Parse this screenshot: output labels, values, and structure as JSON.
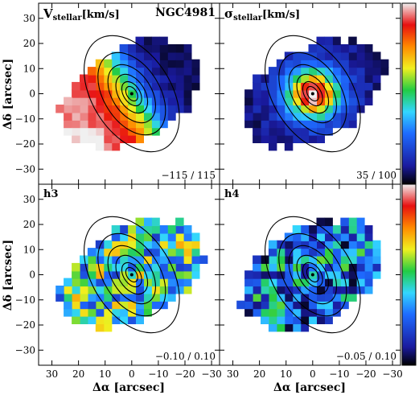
{
  "figure": {
    "galaxy_name": "NGC4981"
  },
  "chart_data": [
    {
      "type": "heatmap",
      "panel": "top-left",
      "label_main": "V",
      "label_sub": "stellar",
      "label_unit": "[km/s]",
      "range_text": "−115 / 115",
      "vmin": -115,
      "vmax": 115,
      "ylabel": "Δδ [arcsec]",
      "xlabel": "",
      "xlim": [
        35,
        -33
      ],
      "ylim": [
        -36,
        36
      ],
      "xticks": [
        30,
        20,
        10,
        0,
        -10,
        -20,
        -30
      ],
      "yticks": [
        -30,
        -20,
        -10,
        0,
        10,
        20,
        30
      ],
      "ytick_labels": [
        "−30",
        "−20",
        "−10",
        "0",
        "10",
        "20",
        "30"
      ]
    },
    {
      "type": "heatmap",
      "panel": "top-right",
      "label_main": "σ",
      "label_sub": "stellar",
      "label_unit": "[km/s]",
      "range_text": "35 / 100",
      "vmin": 35,
      "vmax": 100,
      "ylabel": "",
      "xlabel": "",
      "xlim": [
        35,
        -33
      ],
      "ylim": [
        -36,
        36
      ],
      "xticks": [
        30,
        20,
        10,
        0,
        -10,
        -20,
        -30
      ],
      "yticks": [
        -30,
        -20,
        -10,
        0,
        10,
        20,
        30
      ]
    },
    {
      "type": "heatmap",
      "panel": "bottom-left",
      "label_main": "h3",
      "range_text": "−0.10 / 0.10",
      "vmin": -0.1,
      "vmax": 0.1,
      "ylabel": "Δδ [arcsec]",
      "xlabel": "Δα [arcsec]",
      "xlim": [
        35,
        -33
      ],
      "ylim": [
        -36,
        36
      ],
      "xticks": [
        30,
        20,
        10,
        0,
        -10,
        -20,
        -30
      ],
      "xtick_labels": [
        "30",
        "20",
        "10",
        "0",
        "−10",
        "−20",
        "−30"
      ],
      "yticks": [
        -30,
        -20,
        -10,
        0,
        10,
        20,
        30
      ],
      "ytick_labels": [
        "−30",
        "−20",
        "−10",
        "0",
        "10",
        "20",
        "30"
      ]
    },
    {
      "type": "heatmap",
      "panel": "bottom-right",
      "label_main": "h4",
      "range_text": "−0.05 / 0.10",
      "vmin": -0.05,
      "vmax": 0.1,
      "ylabel": "",
      "xlabel": "Δα [arcsec]",
      "xlim": [
        35,
        -33
      ],
      "ylim": [
        -36,
        36
      ],
      "xticks": [
        30,
        20,
        10,
        0,
        -10,
        -20,
        -30
      ],
      "xtick_labels": [
        "30",
        "20",
        "10",
        "0",
        "−10",
        "−20",
        "−30"
      ],
      "yticks": [
        -30,
        -20,
        -10,
        0,
        10,
        20,
        30
      ]
    }
  ],
  "colorbar": {
    "orientation": "vertical",
    "stops": [
      "#000000",
      "#1a1a9e",
      "#1e6bff",
      "#33d6ff",
      "#22cc44",
      "#f0f020",
      "#ff8a00",
      "#e81010",
      "#f0f0f0"
    ]
  },
  "grid": false
}
